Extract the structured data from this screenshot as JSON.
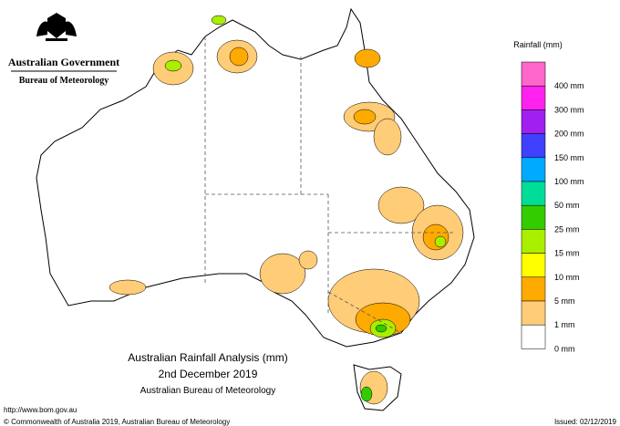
{
  "header": {
    "government": "Australian Government",
    "agency": "Bureau of Meteorology"
  },
  "title": {
    "line1": "Australian Rainfall Analysis (mm)",
    "line2": "2nd December 2019",
    "line3": "Australian Bureau of Meteorology"
  },
  "legend": {
    "title": "Rainfall (mm)",
    "items": [
      {
        "label": "400 mm",
        "color": "#ff66cc"
      },
      {
        "label": "300 mm",
        "color": "#ff22ee"
      },
      {
        "label": "200 mm",
        "color": "#a020f0"
      },
      {
        "label": "150 mm",
        "color": "#4040ff"
      },
      {
        "label": "100 mm",
        "color": "#00aaff"
      },
      {
        "label": "50 mm",
        "color": "#00dd99"
      },
      {
        "label": "25 mm",
        "color": "#33cc00"
      },
      {
        "label": "15 mm",
        "color": "#aaee00"
      },
      {
        "label": "10 mm",
        "color": "#ffff00"
      },
      {
        "label": "5 mm",
        "color": "#ffaa00"
      },
      {
        "label": "1 mm",
        "color": "#ffcc77"
      },
      {
        "label": "0 mm",
        "color": "#ffffff"
      }
    ]
  },
  "footer": {
    "url": "http://www.bom.gov.au",
    "copyright": "© Commonwealth of Australia 2019, Australian Bureau of Meteorology",
    "issued": "Issued: 02/12/2019"
  }
}
